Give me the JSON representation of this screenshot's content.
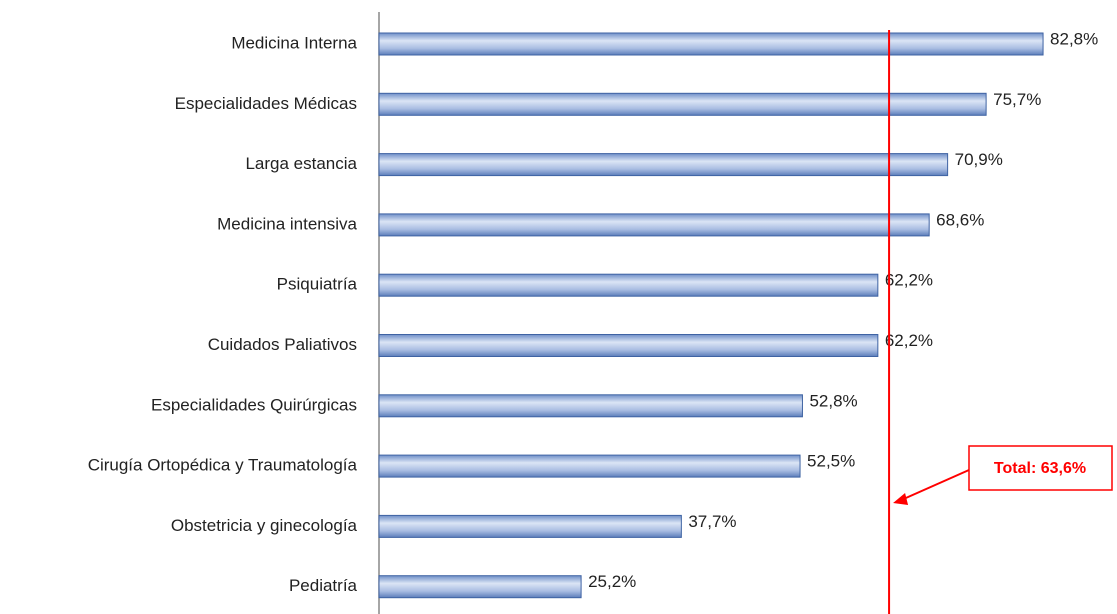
{
  "chart_data": {
    "type": "hbar",
    "categories": [
      "Medicina Interna",
      "Especialidades Médicas",
      "Larga estancia",
      "Medicina intensiva",
      "Psiquiatría",
      "Cuidados Paliativos",
      "Especialidades Quirúrgicas",
      "Cirugía Ortopédica y Traumatología",
      "Obstetricia y ginecología",
      "Pediatría"
    ],
    "values": [
      82.8,
      75.7,
      70.9,
      68.6,
      62.2,
      62.2,
      52.8,
      52.5,
      37.7,
      25.2
    ],
    "value_labels": [
      "82,8%",
      "75,7%",
      "70,9%",
      "68,6%",
      "62,2%",
      "62,2%",
      "52,8%",
      "52,5%",
      "37,7%",
      "25,2%"
    ],
    "color": "#7f9bcf",
    "xlim": [
      0,
      90
    ],
    "reference": {
      "value": 63.6,
      "label": "Total: 63,6%",
      "color": "#ff0000"
    }
  }
}
